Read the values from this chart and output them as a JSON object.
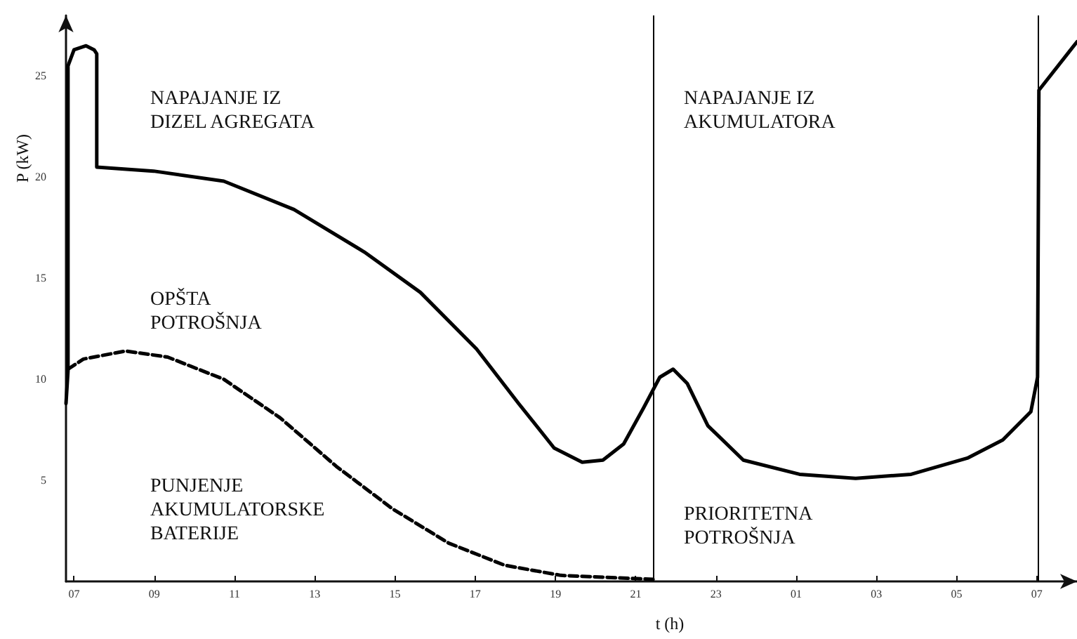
{
  "chart_data": {
    "type": "line",
    "xlabel": "t (h)",
    "ylabel": "P (kW)",
    "xlim": [
      "--01-01T06:48",
      "--01-02T08:00"
    ],
    "ylim": [
      0,
      28
    ],
    "xticks": [
      {
        "value": "--01-01T07:00",
        "label": "07"
      },
      {
        "value": "--01-01T09:00",
        "label": "09"
      },
      {
        "value": "--01-01T11:00",
        "label": "11"
      },
      {
        "value": "--01-01T13:00",
        "label": "13"
      },
      {
        "value": "--01-01T15:00",
        "label": "15"
      },
      {
        "value": "--01-01T17:00",
        "label": "17"
      },
      {
        "value": "--01-01T19:00",
        "label": "19"
      },
      {
        "value": "--01-01T21:00",
        "label": "21"
      },
      {
        "value": "--01-01T23:00",
        "label": "23"
      },
      {
        "value": "--01-02T01:00",
        "label": "01"
      },
      {
        "value": "--01-02T03:00",
        "label": "03"
      },
      {
        "value": "--01-02T05:00",
        "label": "05"
      },
      {
        "value": "--01-02T07:00",
        "label": "07"
      }
    ],
    "yticks": [
      5,
      10,
      15,
      20,
      25
    ],
    "grid": false,
    "marker": "none",
    "series": [
      {
        "color": "#000000",
        "line_style": "solid",
        "x": [
          "--01-01T06:48",
          "--01-01T06:51",
          "--01-01T06:51",
          "--01-01T07:00",
          "--01-01T07:18",
          "--01-01T07:30",
          "--01-01T07:34",
          "--01-01T07:34",
          "--01-01T08:59",
          "--01-01T10:44",
          "--01-01T12:29",
          "--01-01T14:14",
          "--01-01T15:38",
          "--01-01T17:02",
          "--01-01T18:05",
          "--01-01T18:58",
          "--01-01T19:40",
          "--01-01T20:11",
          "--01-01T20:42",
          "--01-01T21:12",
          "--01-01T21:36",
          "--01-01T21:56",
          "--01-01T22:17",
          "--01-01T22:48",
          "--01-01T23:41",
          "--01-02T01:05",
          "--01-02T02:29",
          "--01-02T03:52",
          "--01-02T05:16",
          "--01-02T06:09",
          "--01-02T06:51",
          "--01-02T07:01",
          "--01-02T07:03",
          "--01-02T08:00"
        ],
        "values": [
          8.8,
          10.4,
          25.5,
          26.3,
          26.5,
          26.3,
          26.1,
          20.5,
          20.3,
          19.8,
          18.4,
          16.3,
          14.3,
          11.5,
          8.8,
          6.6,
          5.9,
          6.0,
          6.8,
          8.6,
          10.1,
          10.5,
          9.8,
          7.7,
          6.0,
          5.3,
          5.1,
          5.3,
          6.1,
          7.0,
          8.4,
          10.1,
          24.3,
          26.7
        ]
      },
      {
        "color": "#000000",
        "line_style": "dashed",
        "x": [
          "--01-01T06:51",
          "--01-01T07:14",
          "--01-01T08:17",
          "--01-01T09:20",
          "--01-01T10:44",
          "--01-01T12:08",
          "--01-01T13:32",
          "--01-01T14:56",
          "--01-01T16:20",
          "--01-01T17:44",
          "--01-01T19:08",
          "--01-01T21:26"
        ],
        "values": [
          10.5,
          11.0,
          11.4,
          11.1,
          10.0,
          8.1,
          5.7,
          3.6,
          1.9,
          0.8,
          0.3,
          0.1
        ]
      }
    ],
    "ref_lines": [
      {
        "axis": "x",
        "value": "--01-01T21:26",
        "color": "#000000"
      },
      {
        "axis": "x",
        "value": "--01-02T07:01",
        "color": "#000000"
      }
    ],
    "annotations": [
      "NAPAJANJE IZ\nDIZEL AGREGATA",
      "NAPAJANJE IZ\nAKUMULATORA",
      "OPŠTA\nPOTROŠNJA",
      "PUNJENJE\nAKUMULATORSKE\nBATERIJE",
      "PRIORITETNA\nPOTROŠNJA"
    ]
  }
}
